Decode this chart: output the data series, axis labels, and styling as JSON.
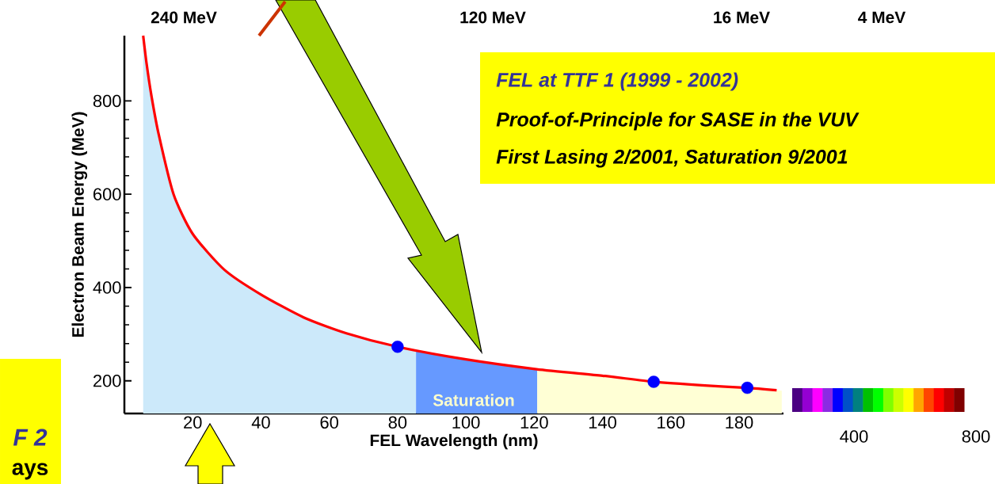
{
  "chart_data": [
    {
      "type": "line",
      "xlabel": "FEL Wavelength (nm)",
      "ylabel": "Electron Beam Energy (MeV)",
      "xlim": [
        0,
        193
      ],
      "ylim": [
        130,
        940
      ],
      "xticks": [
        20,
        40,
        60,
        80,
        100,
        120,
        140,
        160,
        180
      ],
      "yticks": [
        200,
        400,
        600,
        800
      ],
      "series": [
        {
          "type": "area",
          "color": "#cce9fa",
          "x": [
            5.5,
            6.5,
            7.9,
            10,
            14.4,
            20,
            29.3,
            40,
            52.5,
            65,
            80,
            85.4
          ],
          "values": [
            940,
            880,
            812,
            730,
            600,
            515,
            438,
            385,
            336,
            302,
            273,
            265
          ]
        },
        {
          "type": "area",
          "color": "#6699ff",
          "x": [
            85.4,
            100,
            120.9
          ],
          "values": [
            265,
            246,
            225
          ]
        },
        {
          "type": "area",
          "color": "#ffffd5",
          "x": [
            120.9,
            140,
            155,
            170,
            182.4,
            192.5
          ],
          "values": [
            225,
            211,
            198,
            190,
            185,
            179
          ]
        },
        {
          "type": "line",
          "color": "#ff0000",
          "x": [
            5.5,
            6.5,
            7.9,
            10,
            14.4,
            20,
            29.3,
            40,
            52.5,
            65,
            80,
            100,
            120.7,
            140,
            155,
            170,
            182.4,
            191
          ],
          "values": [
            940,
            880,
            812,
            730,
            600,
            515,
            438,
            385,
            336,
            302,
            273,
            246,
            225,
            211,
            198,
            190,
            185,
            180
          ]
        },
        {
          "type": "scatter",
          "color": "#0000ff",
          "marker": "circle",
          "x": [
            80,
            155,
            182.4
          ],
          "values": [
            273,
            198,
            185
          ]
        }
      ],
      "annotations": [
        "240 MeV",
        "120 MeV",
        "16 MeV",
        "4 MeV",
        "FEL at TTF 1 (1999 - 2002)",
        "Proof-of-Principle for SASE in the VUV",
        "First Lasing 2/2001, Saturation 9/2001",
        "Saturation",
        "F 2",
        "ays",
        "400",
        "800"
      ]
    }
  ]
}
